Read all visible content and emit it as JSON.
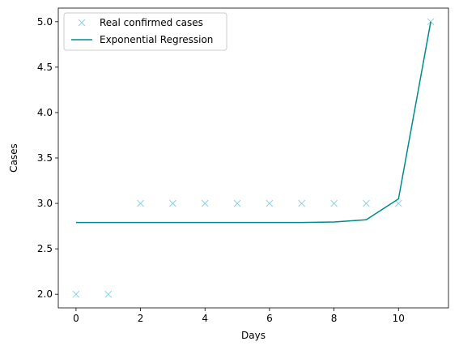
{
  "chart_data": {
    "type": "line",
    "title": "",
    "xlabel": "Days",
    "ylabel": "Cases",
    "xlim": [
      -0.55,
      11.55
    ],
    "ylim": [
      1.85,
      5.15
    ],
    "xticks": [
      0,
      2,
      4,
      6,
      8,
      10
    ],
    "xtick_labels": [
      "0",
      "2",
      "4",
      "6",
      "8",
      "10"
    ],
    "yticks": [
      2.0,
      2.5,
      3.0,
      3.5,
      4.0,
      4.5,
      5.0
    ],
    "ytick_labels": [
      "2.0",
      "2.5",
      "3.0",
      "3.5",
      "4.0",
      "4.5",
      "5.0"
    ],
    "grid": false,
    "legend_position": "top-left",
    "series": [
      {
        "name": "Real confirmed cases",
        "style": "marker-x",
        "color": "#87ceeb",
        "x": [
          0,
          1,
          2,
          3,
          4,
          5,
          6,
          7,
          8,
          9,
          10,
          11
        ],
        "y": [
          2,
          2,
          3,
          3,
          3,
          3,
          3,
          3,
          3,
          3,
          3,
          5
        ]
      },
      {
        "name": "Exponential Regression",
        "style": "line",
        "color": "#008b8b",
        "x": [
          0,
          1,
          2,
          3,
          4,
          5,
          6,
          7,
          8,
          9,
          10,
          11
        ],
        "y": [
          2.79,
          2.79,
          2.79,
          2.79,
          2.79,
          2.79,
          2.79,
          2.79,
          2.795,
          2.82,
          3.05,
          5.0
        ]
      }
    ]
  }
}
